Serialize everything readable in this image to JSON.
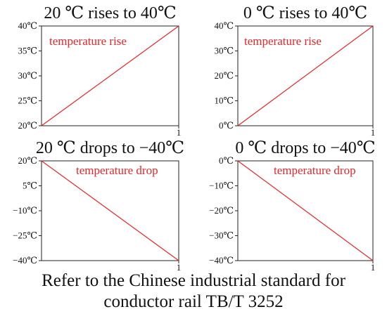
{
  "chart_data": [
    {
      "type": "line",
      "title": "20 ℃ rises to 40℃",
      "ylim": [
        20,
        40
      ],
      "yticks": [
        "40℃",
        "35℃",
        "30℃",
        "25℃",
        "20℃"
      ],
      "ytick_values": [
        40,
        35,
        30,
        25,
        20
      ],
      "xlim": [
        0,
        1
      ],
      "xticks": [
        "1"
      ],
      "xtick_values": [
        1
      ],
      "x": [
        0,
        1
      ],
      "series": [
        {
          "values": [
            20,
            40
          ],
          "color": "#e8252a"
        }
      ],
      "annotation": "temperature rise",
      "grid": false
    },
    {
      "type": "line",
      "title": "0 ℃ rises to 40℃",
      "ylim": [
        0,
        40
      ],
      "yticks": [
        "40℃",
        "30℃",
        "20℃",
        "10℃",
        "0℃"
      ],
      "ytick_values": [
        40,
        30,
        20,
        10,
        0
      ],
      "xlim": [
        0,
        1
      ],
      "xticks": [
        "1"
      ],
      "xtick_values": [
        1
      ],
      "x": [
        0,
        1
      ],
      "series": [
        {
          "values": [
            0,
            40
          ],
          "color": "#e8252a"
        }
      ],
      "annotation": "temperature rise",
      "grid": false
    },
    {
      "type": "line",
      "title": "20 ℃ drops to −40℃",
      "ylim": [
        -40,
        20
      ],
      "yticks": [
        "20℃",
        "5℃",
        "−10℃",
        "−25℃",
        "−40℃"
      ],
      "ytick_values": [
        20,
        5,
        -10,
        -25,
        -40
      ],
      "xlim": [
        0,
        1
      ],
      "xticks": [
        "1"
      ],
      "xtick_values": [
        1
      ],
      "x": [
        0,
        1
      ],
      "series": [
        {
          "values": [
            20,
            -40
          ],
          "color": "#e8252a"
        }
      ],
      "annotation": "temperature drop",
      "grid": false
    },
    {
      "type": "line",
      "title": "0 ℃ drops to −40℃",
      "ylim": [
        -40,
        0
      ],
      "yticks": [
        "0℃",
        "−10℃",
        "−20℃",
        "−30℃",
        "−40℃"
      ],
      "ytick_values": [
        0,
        -10,
        -20,
        -30,
        -40
      ],
      "xlim": [
        0,
        1
      ],
      "xticks": [
        "1"
      ],
      "xtick_values": [
        1
      ],
      "x": [
        0,
        1
      ],
      "series": [
        {
          "values": [
            0,
            -40
          ],
          "color": "#e8252a"
        }
      ],
      "annotation": "temperature drop",
      "grid": false
    }
  ],
  "caption": {
    "line1": "Refer to the Chinese industrial standard for",
    "line2": "conductor rail TB/T 3252"
  }
}
